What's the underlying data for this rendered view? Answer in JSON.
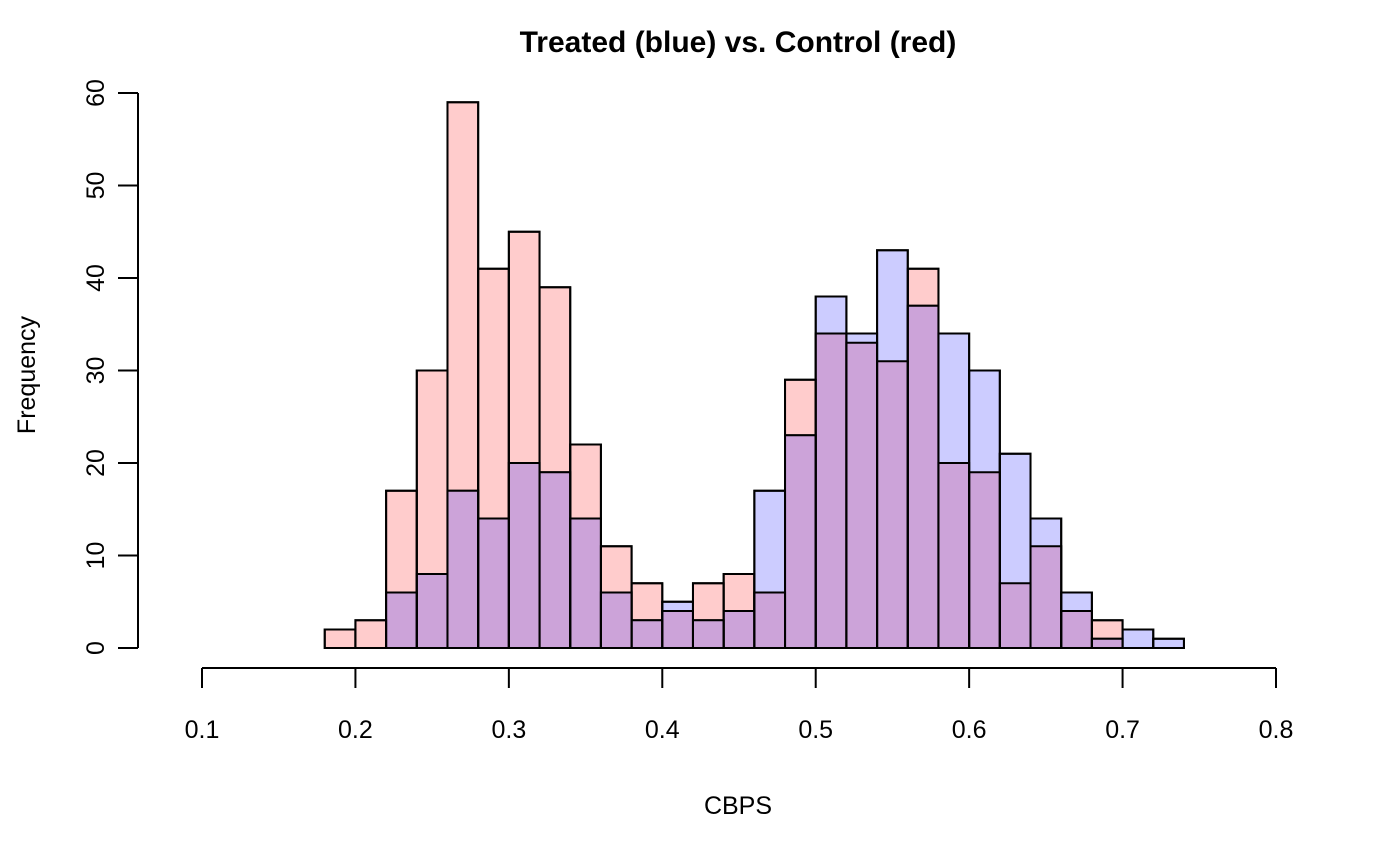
{
  "chart_data": {
    "type": "bar",
    "title": "Treated (blue) vs. Control (red)",
    "xlabel": "CBPS",
    "ylabel": "Frequency",
    "xlim": [
      0.1,
      0.8
    ],
    "ylim": [
      0,
      60
    ],
    "x_ticks": [
      "0.1",
      "0.2",
      "0.3",
      "0.4",
      "0.5",
      "0.6",
      "0.7",
      "0.8"
    ],
    "x_tick_values": [
      0.1,
      0.2,
      0.3,
      0.4,
      0.5,
      0.6,
      0.7,
      0.8
    ],
    "y_ticks": [
      "0",
      "10",
      "20",
      "30",
      "40",
      "50",
      "60"
    ],
    "y_tick_values": [
      0,
      10,
      20,
      30,
      40,
      50,
      60
    ],
    "bin_width": 0.02,
    "grid": false,
    "series": [
      {
        "color": "#ffcccc",
        "bins_start": [
          0.18,
          0.2,
          0.22,
          0.24,
          0.26,
          0.28,
          0.3,
          0.32,
          0.34,
          0.36,
          0.38,
          0.4,
          0.42,
          0.44,
          0.46,
          0.48,
          0.5,
          0.52,
          0.54,
          0.56,
          0.58,
          0.6,
          0.62,
          0.64,
          0.66,
          0.68
        ],
        "values": [
          2,
          3,
          17,
          30,
          59,
          41,
          45,
          39,
          22,
          11,
          7,
          4,
          7,
          8,
          6,
          29,
          34,
          33,
          31,
          41,
          20,
          19,
          7,
          11,
          4,
          3
        ]
      },
      {
        "color": "#ccccff",
        "bins_start": [
          0.22,
          0.24,
          0.26,
          0.28,
          0.3,
          0.32,
          0.34,
          0.36,
          0.38,
          0.4,
          0.42,
          0.44,
          0.46,
          0.48,
          0.5,
          0.52,
          0.54,
          0.56,
          0.58,
          0.6,
          0.62,
          0.64,
          0.66,
          0.68,
          0.7,
          0.72
        ],
        "values": [
          6,
          8,
          17,
          14,
          20,
          19,
          14,
          6,
          3,
          5,
          3,
          4,
          17,
          23,
          38,
          34,
          43,
          37,
          34,
          30,
          21,
          14,
          6,
          1,
          2,
          1
        ]
      }
    ],
    "overlap_color": "#cca3d9"
  }
}
